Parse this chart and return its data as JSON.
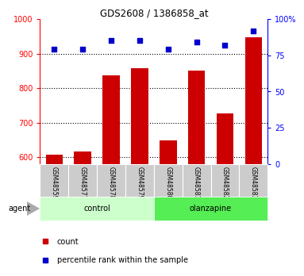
{
  "title": "GDS2608 / 1386858_at",
  "samples": [
    "GSM48559",
    "GSM48577",
    "GSM48578",
    "GSM48579",
    "GSM48580",
    "GSM48581",
    "GSM48582",
    "GSM48583"
  ],
  "count_values": [
    608,
    617,
    838,
    858,
    648,
    851,
    727,
    948
  ],
  "percentile_values": [
    79,
    79,
    85,
    85,
    79,
    84,
    82,
    92
  ],
  "ylim_left": [
    580,
    1000
  ],
  "ylim_right": [
    0,
    100
  ],
  "yticks_left": [
    600,
    700,
    800,
    900,
    1000
  ],
  "yticks_right": [
    0,
    25,
    50,
    75,
    100
  ],
  "bar_color": "#cc0000",
  "dot_color": "#0000cc",
  "control_color": "#ccffcc",
  "olanzapine_color": "#55ee55",
  "sample_box_color": "#cccccc",
  "agent_label": "agent",
  "legend_count": "count",
  "legend_percentile": "percentile rank within the sample",
  "control_label": "control",
  "olanzapine_label": "olanzapine"
}
